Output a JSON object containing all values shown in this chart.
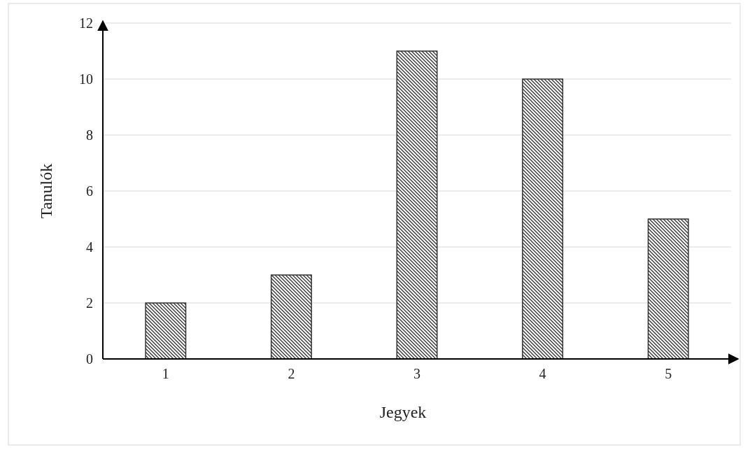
{
  "chart_data": {
    "type": "bar",
    "xlabel": "Jegyek",
    "ylabel": "Tanulók",
    "categories": [
      "1",
      "2",
      "3",
      "4",
      "5"
    ],
    "values": [
      2,
      3,
      11,
      10,
      5
    ],
    "color": "#333333",
    "ylim": [
      0,
      12
    ],
    "yticks": [
      0,
      2,
      4,
      6,
      8,
      10,
      12
    ],
    "grid": "y"
  }
}
